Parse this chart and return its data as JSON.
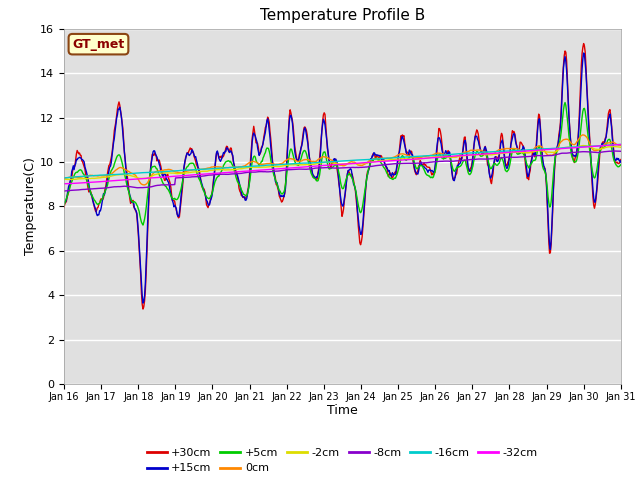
{
  "title": "Temperature Profile B",
  "xlabel": "Time",
  "ylabel": "Temperature(C)",
  "ylim": [
    0,
    16
  ],
  "yticks": [
    0,
    2,
    4,
    6,
    8,
    10,
    12,
    14,
    16
  ],
  "fig_bg_color": "#e8e8e8",
  "plot_bg_color": "#e0e0e0",
  "series_colors": {
    "+30cm": "#dd0000",
    "+15cm": "#0000cc",
    "+5cm": "#00cc00",
    "0cm": "#ff8800",
    "-2cm": "#dddd00",
    "-8cm": "#8800cc",
    "-16cm": "#00cccc",
    "-32cm": "#ff00ff"
  },
  "series_labels": [
    "+30cm",
    "+15cm",
    "+5cm",
    "0cm",
    "-2cm",
    "-8cm",
    "-16cm",
    "-32cm"
  ],
  "legend_label": "GT_met",
  "legend_box_color": "#ffffcc",
  "legend_box_border": "#8B4513",
  "n_points": 720,
  "x_start_day": 16,
  "x_end_day": 31,
  "x_ticks": [
    16,
    17,
    18,
    19,
    20,
    21,
    22,
    23,
    24,
    25,
    26,
    27,
    28,
    29,
    30,
    31
  ]
}
